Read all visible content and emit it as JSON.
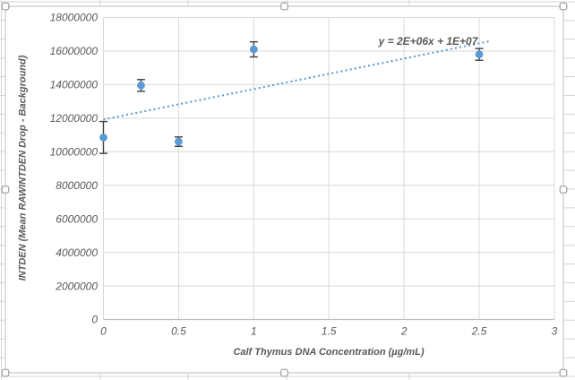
{
  "chart_data": {
    "type": "scatter",
    "title": "",
    "xlabel": "Calf Thymus DNA Concentration (µg/mL)",
    "ylabel": "INTDEN (Mean RAWINTDEN Drop - Background)",
    "xlim": [
      0,
      3
    ],
    "ylim": [
      0,
      18000000
    ],
    "grid": true,
    "legend": "none",
    "x_ticks": [
      0,
      0.5,
      1,
      1.5,
      2,
      2.5,
      3
    ],
    "x_tick_labels": [
      "0",
      "0.5",
      "1",
      "1.5",
      "2",
      "2.5",
      "3"
    ],
    "y_ticks": [
      0,
      2000000,
      4000000,
      6000000,
      8000000,
      10000000,
      12000000,
      14000000,
      16000000,
      18000000
    ],
    "y_tick_labels": [
      "0",
      "2000000",
      "4000000",
      "6000000",
      "8000000",
      "10000000",
      "12000000",
      "14000000",
      "16000000",
      "18000000"
    ],
    "series": [
      {
        "marker": "circle",
        "points": [
          {
            "x": 0,
            "y": 10850000,
            "yerr": 950000
          },
          {
            "x": 0.25,
            "y": 13950000,
            "yerr": 350000
          },
          {
            "x": 0.5,
            "y": 10600000,
            "yerr": 280000
          },
          {
            "x": 1,
            "y": 16100000,
            "yerr": 450000
          },
          {
            "x": 2.5,
            "y": 15800000,
            "yerr": 350000
          }
        ]
      }
    ],
    "trendline": {
      "label": "y = 2E+06x + 1E+07",
      "slope": 1818000,
      "intercept": 11915000,
      "x_start": 0,
      "x_end": 2.58,
      "style": "dotted"
    },
    "colors": {
      "marker": "#5B9BD5",
      "trendline": "#5B9BD5",
      "error_bar": "#3F3F3F",
      "gridline": "#D9D9D9",
      "axis_line": "#BFBFBF",
      "text": "#595959",
      "sheet_gridline": "#D5D5D5",
      "frame_border": "#D2D2D2",
      "handle_border": "#A6A6A6"
    }
  },
  "chart_frame": {
    "selected": true,
    "selection_handles": 8
  }
}
